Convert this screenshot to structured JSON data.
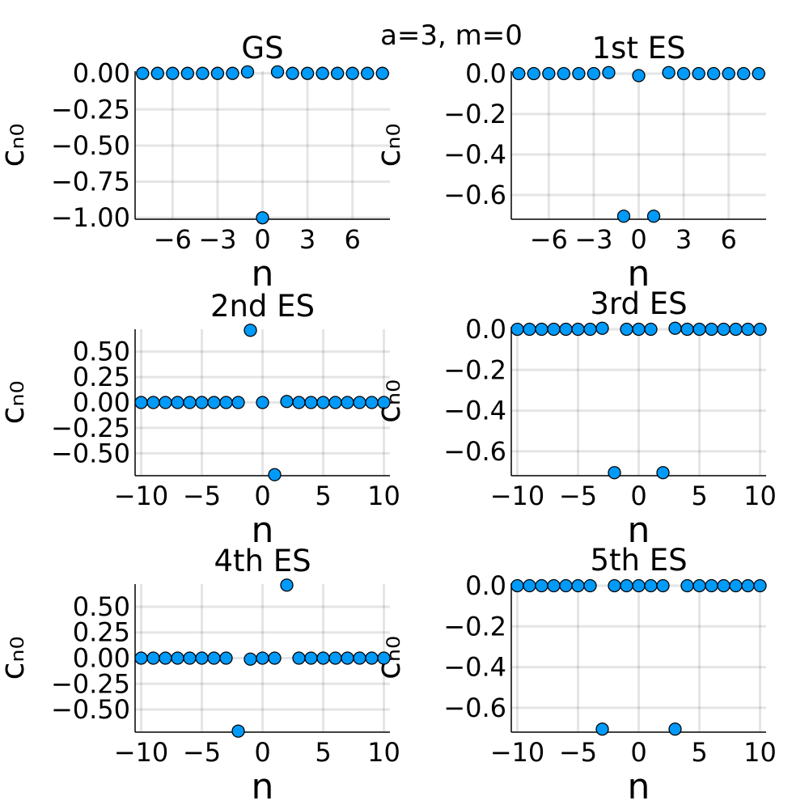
{
  "figure": {
    "title": "a=3, m=0"
  },
  "colors": {
    "marker": "#009af9",
    "marker_edge": "#000000"
  },
  "chart_data": [
    {
      "type": "scatter",
      "title": "GS",
      "xlabel": "n",
      "ylabel": "cₙ₀",
      "xlim": [
        -8.5,
        8.5
      ],
      "ylim": [
        -1.01,
        0.015
      ],
      "xticks": [
        -6,
        -3,
        0,
        3,
        6
      ],
      "xtick_labels": [
        "−6",
        "−3",
        "0",
        "3",
        "6"
      ],
      "yticks": [
        0,
        -0.25,
        -0.5,
        -0.75,
        -1.0
      ],
      "ytick_labels": [
        "0.00",
        "−0.25",
        "−0.50",
        "−0.75",
        "−1.00"
      ],
      "grid": true,
      "x": [
        -8,
        -7,
        -6,
        -5,
        -4,
        -3,
        -2,
        -1,
        0,
        1,
        2,
        3,
        4,
        5,
        6,
        7,
        8
      ],
      "y": [
        0,
        0,
        0,
        0,
        0,
        0,
        0,
        0.01,
        -1.0,
        0.01,
        0,
        0,
        0,
        0,
        0,
        0,
        0
      ]
    },
    {
      "type": "scatter",
      "title": "1st ES",
      "xlabel": "n",
      "ylabel": "cₙ₀",
      "xlim": [
        -8.5,
        8.5
      ],
      "ylim": [
        -0.72,
        0.012
      ],
      "xticks": [
        -6,
        -3,
        0,
        3,
        6
      ],
      "xtick_labels": [
        "−6",
        "−3",
        "0",
        "3",
        "6"
      ],
      "yticks": [
        0,
        -0.2,
        -0.4,
        -0.6
      ],
      "ytick_labels": [
        "0.0",
        "−0.2",
        "−0.4",
        "−0.6"
      ],
      "grid": true,
      "x": [
        -8,
        -7,
        -6,
        -5,
        -4,
        -3,
        -2,
        -1,
        0,
        1,
        2,
        3,
        4,
        5,
        6,
        7,
        8
      ],
      "y": [
        0,
        0,
        0,
        0,
        0,
        0,
        0.005,
        -0.705,
        -0.01,
        -0.705,
        0.005,
        0,
        0,
        0,
        0,
        0,
        0
      ]
    },
    {
      "type": "scatter",
      "title": "2nd ES",
      "xlabel": "n",
      "ylabel": "cₙ₀",
      "xlim": [
        -10.5,
        10.5
      ],
      "ylim": [
        -0.72,
        0.72
      ],
      "xticks": [
        -10,
        -5,
        0,
        5,
        10
      ],
      "xtick_labels": [
        "−10",
        "−5",
        "0",
        "5",
        "10"
      ],
      "yticks": [
        0.5,
        0.25,
        0,
        -0.25,
        -0.5
      ],
      "ytick_labels": [
        "0.50",
        "0.25",
        "0.00",
        "−0.25",
        "−0.50"
      ],
      "grid": true,
      "x": [
        -10,
        -9,
        -8,
        -7,
        -6,
        -5,
        -4,
        -3,
        -2,
        -1,
        0,
        1,
        2,
        3,
        4,
        5,
        6,
        7,
        8,
        9,
        10
      ],
      "y": [
        0,
        0,
        0,
        0,
        0,
        0,
        0,
        0,
        0,
        0.71,
        0,
        -0.71,
        0.01,
        0,
        0,
        0,
        0,
        0,
        0,
        0,
        0
      ]
    },
    {
      "type": "scatter",
      "title": "3rd ES",
      "xlabel": "n",
      "ylabel": "cₙ₀",
      "xlim": [
        -10.5,
        10.5
      ],
      "ylim": [
        -0.72,
        0.012
      ],
      "xticks": [
        -10,
        -5,
        0,
        5,
        10
      ],
      "xtick_labels": [
        "−10",
        "−5",
        "0",
        "5",
        "10"
      ],
      "yticks": [
        0,
        -0.2,
        -0.4,
        -0.6
      ],
      "ytick_labels": [
        "0.0",
        "−0.2",
        "−0.4",
        "−0.6"
      ],
      "grid": true,
      "x": [
        -10,
        -9,
        -8,
        -7,
        -6,
        -5,
        -4,
        -3,
        -2,
        -1,
        0,
        1,
        2,
        3,
        4,
        5,
        6,
        7,
        8,
        9,
        10
      ],
      "y": [
        0,
        0,
        0,
        0,
        0,
        0,
        0,
        0.005,
        -0.705,
        0,
        0,
        0,
        -0.705,
        0.005,
        0,
        0,
        0,
        0,
        0,
        0,
        0
      ]
    },
    {
      "type": "scatter",
      "title": "4th ES",
      "xlabel": "n",
      "ylabel": "cₙ₀",
      "xlim": [
        -10.5,
        10.5
      ],
      "ylim": [
        -0.72,
        0.72
      ],
      "xticks": [
        -10,
        -5,
        0,
        5,
        10
      ],
      "xtick_labels": [
        "−10",
        "−5",
        "0",
        "5",
        "10"
      ],
      "yticks": [
        0.5,
        0.25,
        0,
        -0.25,
        -0.5
      ],
      "ytick_labels": [
        "0.50",
        "0.25",
        "0.00",
        "−0.25",
        "−0.50"
      ],
      "grid": true,
      "x": [
        -10,
        -9,
        -8,
        -7,
        -6,
        -5,
        -4,
        -3,
        -2,
        -1,
        0,
        1,
        2,
        3,
        4,
        5,
        6,
        7,
        8,
        9,
        10
      ],
      "y": [
        0,
        0,
        0,
        0,
        0,
        0,
        0,
        0,
        -0.71,
        -0.01,
        0,
        0,
        0.71,
        0,
        0,
        0,
        0,
        0,
        0,
        0,
        0
      ]
    },
    {
      "type": "scatter",
      "title": "5th ES",
      "xlabel": "n",
      "ylabel": "cₙ₀",
      "xlim": [
        -10.5,
        10.5
      ],
      "ylim": [
        -0.72,
        0.012
      ],
      "xticks": [
        -10,
        -5,
        0,
        5,
        10
      ],
      "xtick_labels": [
        "−10",
        "−5",
        "0",
        "5",
        "10"
      ],
      "yticks": [
        0,
        -0.2,
        -0.4,
        -0.6
      ],
      "ytick_labels": [
        "0.0",
        "−0.2",
        "−0.4",
        "−0.6"
      ],
      "grid": true,
      "x": [
        -10,
        -9,
        -8,
        -7,
        -6,
        -5,
        -4,
        -3,
        -2,
        -1,
        0,
        1,
        2,
        3,
        4,
        5,
        6,
        7,
        8,
        9,
        10
      ],
      "y": [
        0,
        0,
        0,
        0,
        0,
        0,
        0,
        -0.705,
        0,
        0,
        0,
        0,
        0,
        -0.705,
        0,
        0,
        0,
        0,
        0,
        0,
        0
      ]
    }
  ]
}
